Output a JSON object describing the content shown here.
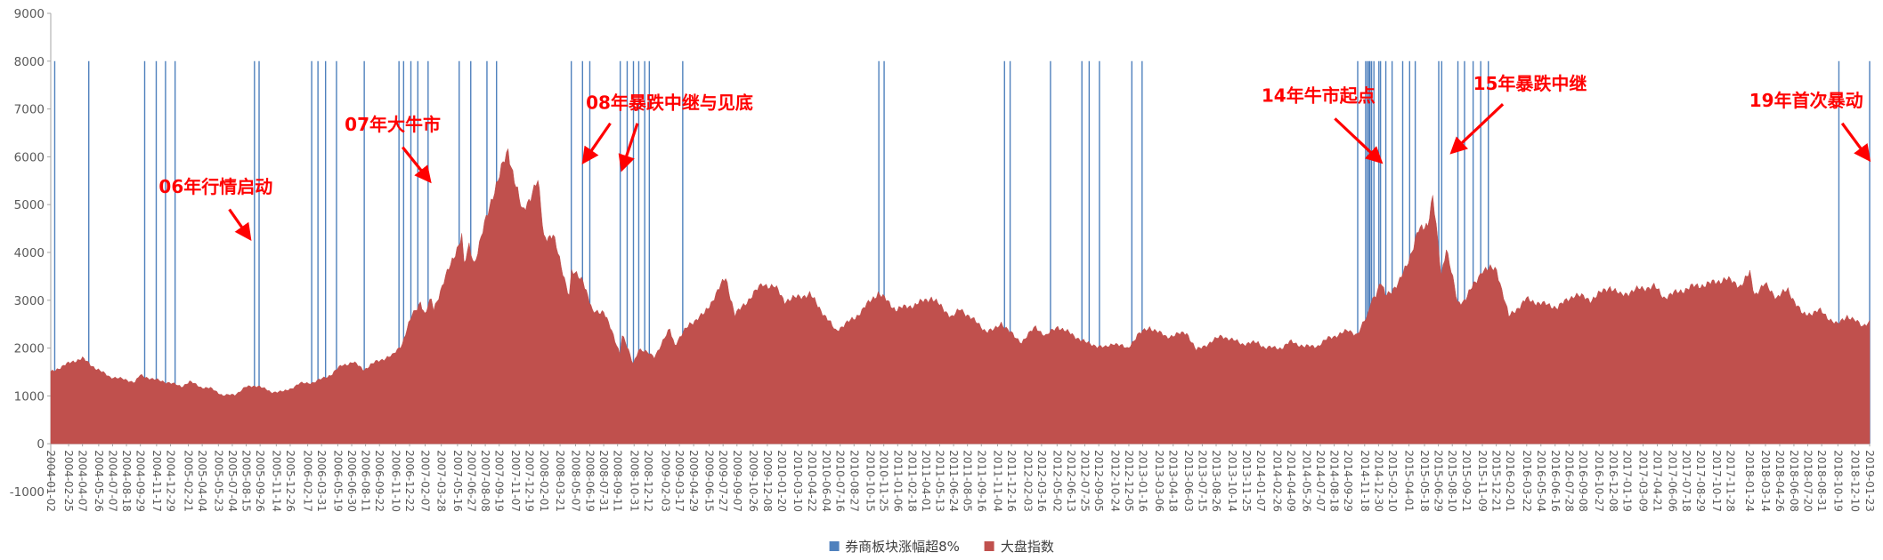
{
  "chart_data": {
    "type": "area",
    "title": "",
    "x_range": [
      "2004-01-02",
      "2019-01-23"
    ],
    "y_axis": {
      "min": -1000,
      "max": 9000,
      "tick_step": 1000,
      "ticks": [
        9000,
        8000,
        7000,
        6000,
        5000,
        4000,
        3000,
        2000,
        1000,
        0,
        -1000
      ]
    },
    "x_ticks": [
      "2004-01-02",
      "2004-02-25",
      "2004-04-07",
      "2004-05-26",
      "2004-07-07",
      "2004-08-18",
      "2004-09-29",
      "2004-11-17",
      "2004-12-29",
      "2005-02-21",
      "2005-04-04",
      "2005-05-23",
      "2005-07-04",
      "2005-08-15",
      "2005-09-26",
      "2005-11-14",
      "2005-12-26",
      "2006-02-17",
      "2006-03-31",
      "2006-05-19",
      "2006-06-30",
      "2006-08-11",
      "2006-09-22",
      "2006-11-10",
      "2006-12-22",
      "2007-02-07",
      "2007-03-28",
      "2007-05-16",
      "2007-06-27",
      "2007-08-08",
      "2007-09-19",
      "2007-11-07",
      "2007-12-19",
      "2008-02-01",
      "2008-03-21",
      "2008-05-07",
      "2008-06-19",
      "2008-07-31",
      "2008-09-11",
      "2008-10-31",
      "2008-12-12",
      "2009-02-03",
      "2009-03-17",
      "2009-04-29",
      "2009-06-15",
      "2009-07-27",
      "2009-09-07",
      "2009-10-26",
      "2009-12-08",
      "2010-01-20",
      "2010-03-10",
      "2010-04-22",
      "2010-06-04",
      "2010-07-16",
      "2010-08-27",
      "2010-10-15",
      "2010-11-25",
      "2011-01-06",
      "2011-02-18",
      "2011-04-01",
      "2011-05-13",
      "2011-06-24",
      "2011-08-05",
      "2011-09-16",
      "2011-11-04",
      "2011-12-16",
      "2012-02-03",
      "2012-03-16",
      "2012-05-02",
      "2012-06-13",
      "2012-07-25",
      "2012-09-05",
      "2012-10-24",
      "2012-12-05",
      "2013-01-16",
      "2013-03-06",
      "2013-04-18",
      "2013-06-03",
      "2013-07-15",
      "2013-08-26",
      "2013-10-14",
      "2013-11-25",
      "2014-01-07",
      "2014-02-26",
      "2014-04-09",
      "2014-05-26",
      "2014-07-07",
      "2014-08-18",
      "2014-09-29",
      "2014-11-18",
      "2014-12-30",
      "2015-02-10",
      "2015-04-01",
      "2015-05-18",
      "2015-06-29",
      "2015-08-10",
      "2015-09-21",
      "2015-11-09",
      "2015-12-21",
      "2016-02-01",
      "2016-03-22",
      "2016-05-04",
      "2016-06-16",
      "2016-07-28",
      "2016-09-08",
      "2016-10-27",
      "2016-12-08",
      "2017-01-19",
      "2017-03-09",
      "2017-04-21",
      "2017-06-06",
      "2017-07-18",
      "2017-08-29",
      "2017-10-17",
      "2017-11-28",
      "2018-01-24",
      "2018-03-14",
      "2018-04-26",
      "2018-06-08",
      "2018-07-20",
      "2018-08-31",
      "2018-10-19",
      "2018-12-10",
      "2019-01-23"
    ],
    "series": [
      {
        "name": "券商板块涨幅超8%",
        "type": "event-bars",
        "color": "#4F81BD",
        "bar_top": 8000,
        "dates": [
          "2004-01-14",
          "2004-04-26",
          "2004-10-12",
          "2004-11-16",
          "2004-12-14",
          "2005-01-12",
          "2005-09-09",
          "2005-09-23",
          "2006-03-01",
          "2006-03-20",
          "2006-04-12",
          "2006-05-15",
          "2006-08-07",
          "2006-11-20",
          "2006-12-04",
          "2006-12-26",
          "2007-01-16",
          "2007-02-16",
          "2007-05-21",
          "2007-06-25",
          "2007-08-13",
          "2007-09-11",
          "2008-04-24",
          "2008-05-28",
          "2008-06-19",
          "2008-09-19",
          "2008-10-10",
          "2008-10-29",
          "2008-11-14",
          "2008-12-02",
          "2008-12-16",
          "2009-03-27",
          "2010-11-10",
          "2010-11-26",
          "2011-11-25",
          "2011-12-12",
          "2012-04-12",
          "2012-07-16",
          "2012-08-07",
          "2012-09-07",
          "2012-12-14",
          "2013-01-14",
          "2014-10-28",
          "2014-11-21",
          "2014-11-26",
          "2014-12-01",
          "2014-12-04",
          "2014-12-09",
          "2014-12-16",
          "2014-12-31",
          "2015-01-05",
          "2015-01-21",
          "2015-02-09",
          "2015-03-13",
          "2015-04-03",
          "2015-04-20",
          "2015-06-30",
          "2015-07-09",
          "2015-08-27",
          "2015-09-16",
          "2015-10-12",
          "2015-11-04",
          "2015-11-27",
          "2018-10-22",
          "2019-01-23"
        ]
      },
      {
        "name": "大盘指数",
        "type": "area",
        "color": "#C0504D",
        "points": [
          [
            "2004-01-02",
            1497
          ],
          [
            "2004-02-10",
            1630
          ],
          [
            "2004-03-05",
            1710
          ],
          [
            "2004-04-07",
            1783
          ],
          [
            "2004-05-20",
            1560
          ],
          [
            "2004-06-29",
            1400
          ],
          [
            "2004-08-10",
            1345
          ],
          [
            "2004-09-13",
            1285
          ],
          [
            "2004-09-28",
            1430
          ],
          [
            "2004-11-05",
            1350
          ],
          [
            "2004-12-31",
            1266
          ],
          [
            "2005-01-31",
            1191
          ],
          [
            "2005-02-25",
            1300
          ],
          [
            "2005-03-31",
            1181
          ],
          [
            "2005-04-29",
            1159
          ],
          [
            "2005-06-06",
            1010
          ],
          [
            "2005-07-12",
            1025
          ],
          [
            "2005-08-12",
            1180
          ],
          [
            "2005-09-20",
            1215
          ],
          [
            "2005-10-28",
            1080
          ],
          [
            "2005-12-06",
            1090
          ],
          [
            "2005-12-30",
            1161
          ],
          [
            "2006-01-25",
            1258
          ],
          [
            "2006-03-07",
            1280
          ],
          [
            "2006-04-28",
            1440
          ],
          [
            "2006-05-31",
            1641
          ],
          [
            "2006-07-05",
            1700
          ],
          [
            "2006-08-07",
            1550
          ],
          [
            "2006-09-15",
            1730
          ],
          [
            "2006-10-31",
            1837
          ],
          [
            "2006-11-30",
            2099
          ],
          [
            "2006-12-29",
            2675
          ],
          [
            "2007-01-24",
            2975
          ],
          [
            "2007-02-06",
            2680
          ],
          [
            "2007-02-26",
            3040
          ],
          [
            "2007-03-05",
            2820
          ],
          [
            "2007-04-30",
            3841
          ],
          [
            "2007-05-29",
            4335
          ],
          [
            "2007-06-05",
            3720
          ],
          [
            "2007-06-20",
            4130
          ],
          [
            "2007-07-06",
            3780
          ],
          [
            "2007-08-31",
            5218
          ],
          [
            "2007-10-16",
            6124
          ],
          [
            "2007-11-28",
            4830
          ],
          [
            "2007-12-28",
            5262
          ],
          [
            "2008-01-14",
            5497
          ],
          [
            "2008-02-01",
            4330
          ],
          [
            "2008-02-29",
            4348
          ],
          [
            "2008-04-18",
            3094
          ],
          [
            "2008-04-25",
            3583
          ],
          [
            "2008-05-30",
            3433
          ],
          [
            "2008-06-27",
            2748
          ],
          [
            "2008-07-31",
            2776
          ],
          [
            "2008-09-18",
            1896
          ],
          [
            "2008-09-25",
            2297
          ],
          [
            "2008-10-28",
            1664
          ],
          [
            "2008-11-14",
            1986
          ],
          [
            "2008-12-31",
            1821
          ],
          [
            "2009-02-16",
            2389
          ],
          [
            "2009-03-03",
            2071
          ],
          [
            "2009-04-17",
            2503
          ],
          [
            "2009-06-01",
            2721
          ],
          [
            "2009-08-04",
            3478
          ],
          [
            "2009-09-01",
            2683
          ],
          [
            "2009-10-23",
            3107
          ],
          [
            "2009-11-24",
            3338
          ],
          [
            "2009-12-31",
            3277
          ],
          [
            "2010-01-29",
            2989
          ],
          [
            "2010-04-15",
            3130
          ],
          [
            "2010-07-02",
            2363
          ],
          [
            "2010-08-31",
            2639
          ],
          [
            "2010-11-08",
            3160
          ],
          [
            "2010-12-31",
            2808
          ],
          [
            "2011-02-28",
            2905
          ],
          [
            "2011-04-18",
            3057
          ],
          [
            "2011-06-20",
            2642
          ],
          [
            "2011-07-15",
            2820
          ],
          [
            "2011-09-30",
            2359
          ],
          [
            "2011-10-24",
            2370
          ],
          [
            "2011-11-15",
            2530
          ],
          [
            "2011-12-30",
            2199
          ],
          [
            "2012-01-16",
            2132
          ],
          [
            "2012-02-27",
            2440
          ],
          [
            "2012-03-29",
            2252
          ],
          [
            "2012-05-04",
            2452
          ],
          [
            "2012-07-31",
            2103
          ],
          [
            "2012-09-26",
            2004
          ],
          [
            "2012-10-22",
            2114
          ],
          [
            "2012-11-30",
            1980
          ],
          [
            "2012-12-31",
            2269
          ],
          [
            "2013-02-06",
            2434
          ],
          [
            "2013-03-28",
            2236
          ],
          [
            "2013-05-29",
            2324
          ],
          [
            "2013-06-27",
            1950
          ],
          [
            "2013-09-12",
            2256
          ],
          [
            "2013-11-13",
            2088
          ],
          [
            "2013-12-31",
            2116
          ],
          [
            "2014-01-20",
            2009
          ],
          [
            "2014-03-12",
            2002
          ],
          [
            "2014-04-10",
            2135
          ],
          [
            "2014-05-21",
            2026
          ],
          [
            "2014-06-30",
            2048
          ],
          [
            "2014-07-31",
            2202
          ],
          [
            "2014-09-30",
            2364
          ],
          [
            "2014-10-27",
            2291
          ],
          [
            "2014-11-28",
            2683
          ],
          [
            "2014-12-08",
            3021
          ],
          [
            "2014-12-22",
            3127
          ],
          [
            "2015-01-06",
            3351
          ],
          [
            "2015-01-19",
            3116
          ],
          [
            "2015-02-27",
            3310
          ],
          [
            "2015-04-10",
            4034
          ],
          [
            "2015-04-30",
            4442
          ],
          [
            "2015-05-28",
            4620
          ],
          [
            "2015-06-12",
            5166
          ],
          [
            "2015-07-08",
            3507
          ],
          [
            "2015-07-23",
            4123
          ],
          [
            "2015-08-26",
            2927
          ],
          [
            "2015-09-15",
            3005
          ],
          [
            "2015-10-23",
            3412
          ],
          [
            "2015-11-09",
            3647
          ],
          [
            "2015-12-22",
            3651
          ],
          [
            "2016-01-28",
            2655
          ],
          [
            "2016-03-21",
            3019
          ],
          [
            "2016-04-29",
            2938
          ],
          [
            "2016-06-24",
            2854
          ],
          [
            "2016-08-15",
            3125
          ],
          [
            "2016-09-30",
            3005
          ],
          [
            "2016-11-29",
            3283
          ],
          [
            "2016-12-30",
            3104
          ],
          [
            "2017-02-28",
            3242
          ],
          [
            "2017-04-11",
            3289
          ],
          [
            "2017-05-11",
            3062
          ],
          [
            "2017-07-31",
            3273
          ],
          [
            "2017-09-29",
            3349
          ],
          [
            "2017-11-13",
            3447
          ],
          [
            "2017-12-29",
            3307
          ],
          [
            "2018-01-26",
            3558
          ],
          [
            "2018-02-09",
            3130
          ],
          [
            "2018-03-12",
            3327
          ],
          [
            "2018-04-17",
            3066
          ],
          [
            "2018-05-21",
            3214
          ],
          [
            "2018-07-05",
            2692
          ],
          [
            "2018-08-27",
            2780
          ],
          [
            "2018-09-17",
            2651
          ],
          [
            "2018-10-18",
            2486
          ],
          [
            "2018-11-16",
            2679
          ],
          [
            "2018-12-27",
            2484
          ],
          [
            "2019-01-03",
            2464
          ],
          [
            "2019-01-23",
            2581
          ]
        ]
      }
    ],
    "annotation_color": "#FF0000",
    "annotations": [
      {
        "label": "06年行情启动",
        "text_at": [
          "2005-05-15",
          5250
        ],
        "arrows": [
          [
            [
              "2005-06-25",
              4900
            ],
            [
              "2005-08-25",
              4300
            ]
          ]
        ]
      },
      {
        "label": "07年大牛市",
        "text_at": [
          "2006-11-01",
          6550
        ],
        "arrows": [
          [
            [
              "2006-12-01",
              6200
            ],
            [
              "2007-02-20",
              5500
            ]
          ]
        ]
      },
      {
        "label": "08年暴跌中继与见底",
        "text_at": [
          "2009-02-15",
          7000
        ],
        "arrows": [
          [
            [
              "2008-08-20",
              6700
            ],
            [
              "2008-06-01",
              5900
            ]
          ],
          [
            [
              "2008-11-10",
              6700
            ],
            [
              "2008-09-25",
              5750
            ]
          ]
        ]
      },
      {
        "label": "14年牛市起点",
        "text_at": [
          "2014-07-01",
          7150
        ],
        "arrows": [
          [
            [
              "2014-08-20",
              6800
            ],
            [
              "2015-01-05",
              5900
            ]
          ]
        ]
      },
      {
        "label": "15年暴跌中继",
        "text_at": [
          "2016-04-01",
          7400
        ],
        "arrows": [
          [
            [
              "2016-01-10",
              7100
            ],
            [
              "2015-08-10",
              6100
            ]
          ]
        ]
      },
      {
        "label": "19年首次暴动",
        "text_at": [
          "2018-07-15",
          7050
        ],
        "arrows": [
          [
            [
              "2018-11-01",
              6700
            ],
            [
              "2019-01-20",
              5950
            ]
          ]
        ]
      }
    ],
    "legend": {
      "position": "bottom-center",
      "items": [
        {
          "label": "券商板块涨幅超8%",
          "color": "#4F81BD"
        },
        {
          "label": "大盘指数",
          "color": "#C0504D"
        }
      ]
    }
  },
  "colors": {
    "background": "#FFFFFF",
    "axis_text": "#595959",
    "axis_line": "#A6A6A6",
    "annotation": "#FF0000"
  }
}
